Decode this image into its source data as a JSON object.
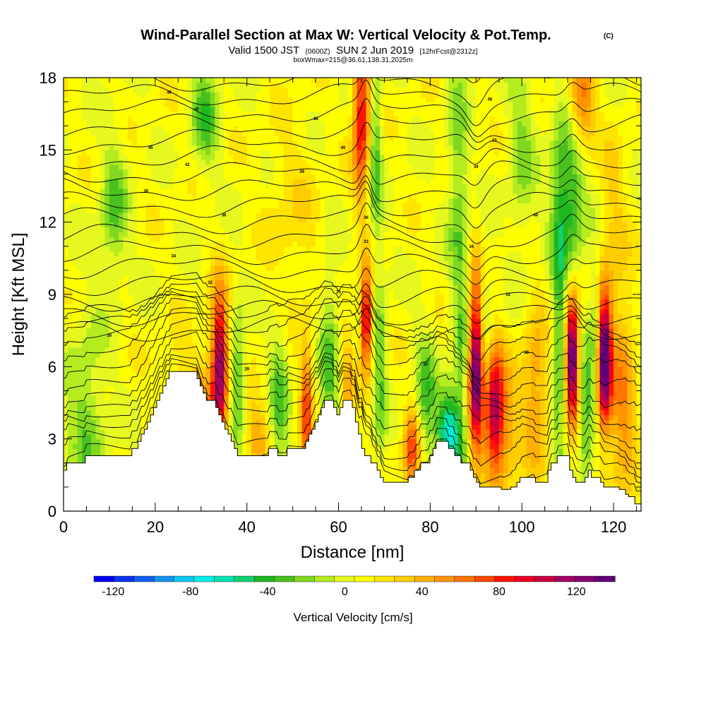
{
  "title": {
    "main": "Wind-Parallel Section at Max W: Vertical Velocity & Pot.Temp.",
    "main_suffix": "(C)",
    "valid_prefix": "Valid 1500 JST",
    "valid_z": "(0600Z)",
    "valid_date": "SUN 2 Jun 2019",
    "fcst": "[12hrFcst@2312z]",
    "box": "boxWmax=215@36.61,138.31,2025m"
  },
  "chart_data": {
    "type": "heatmap",
    "xlabel": "Distance [nm]",
    "ylabel": "Height [Kft MSL]",
    "xlim": [
      0,
      126
    ],
    "ylim": [
      0,
      18
    ],
    "x_ticks": [
      0,
      20,
      40,
      60,
      80,
      100,
      120
    ],
    "y_ticks": [
      0,
      3,
      6,
      9,
      12,
      15,
      18
    ],
    "colorbar": {
      "title": "Vertical Velocity [cm/s]",
      "tick_values": [
        -120,
        -80,
        -40,
        0,
        40,
        80,
        120
      ],
      "min": -130,
      "max": 140,
      "colors": [
        "#0000ee",
        "#0a33ee",
        "#1160ee",
        "#1a90f0",
        "#0fc8f0",
        "#00eee6",
        "#00e2b0",
        "#10d070",
        "#20b820",
        "#48c020",
        "#80d820",
        "#b4ec20",
        "#e6f820",
        "#ffff00",
        "#ffe400",
        "#ffcc00",
        "#ffb000",
        "#ff9400",
        "#ff7400",
        "#ff4800",
        "#ff1400",
        "#ea0020",
        "#c80040",
        "#a00060",
        "#800070",
        "#600078"
      ]
    },
    "terrain_heights": [
      1.7,
      2.0,
      2.0,
      2.0,
      2.0,
      2.0,
      2.0,
      2.3,
      2.3,
      2.3,
      2.3,
      2.3,
      2.3,
      2.3,
      2.3,
      2.3,
      2.3,
      2.3,
      2.3,
      2.3,
      2.3,
      2.3,
      2.6,
      2.6,
      2.9,
      3.2,
      3.4,
      3.7,
      4.0,
      4.3,
      4.6,
      4.9,
      5.2,
      5.5,
      5.8,
      5.8,
      5.8,
      5.8,
      5.8,
      5.8,
      5.8,
      5.8,
      5.8,
      5.5,
      5.2,
      4.9,
      4.6,
      4.6,
      4.6,
      4.3,
      4.0,
      3.7,
      3.4,
      3.2,
      2.9,
      2.6,
      2.3,
      2.3,
      2.3,
      2.3,
      2.3,
      2.3,
      2.3,
      2.3,
      2.3,
      2.3,
      2.6,
      2.6,
      2.6,
      2.3,
      2.3,
      2.3,
      2.6,
      2.6,
      2.6,
      2.6,
      2.6,
      2.6,
      2.9,
      3.2,
      3.4,
      3.7,
      4.0,
      4.3,
      4.6,
      4.6,
      4.6,
      4.3,
      4.0,
      4.3,
      4.6,
      4.6,
      4.6,
      4.3,
      3.7,
      3.2,
      2.6,
      2.3,
      2.3,
      2.0,
      2.0,
      1.7,
      1.4,
      1.2,
      1.2,
      1.2,
      1.2,
      1.2,
      1.2,
      1.2,
      1.2,
      1.4,
      1.4,
      1.7,
      1.7,
      2.0,
      2.0,
      2.0,
      2.3,
      2.6,
      2.9,
      2.9,
      2.9,
      2.9,
      2.6,
      2.6,
      2.3,
      2.3,
      2.0,
      2.0,
      2.0,
      1.7,
      1.4,
      1.2,
      1.0,
      1.0,
      1.0,
      1.0,
      1.0,
      1.0,
      1.0,
      0.9,
      0.9,
      0.9,
      1.0,
      1.0,
      1.2,
      1.4,
      1.4,
      1.4,
      1.4,
      1.4,
      1.2,
      1.2,
      1.2,
      1.2,
      1.7,
      2.0,
      2.0,
      2.3,
      2.3,
      2.3,
      2.3,
      1.7,
      1.4,
      1.2,
      1.2,
      1.2,
      1.4,
      1.7,
      1.4,
      1.4,
      1.4,
      1.2,
      1.0,
      1.0,
      1.0,
      1.0,
      1.0,
      0.9,
      0.9,
      0.7,
      0.6,
      0.6,
      0.3,
      0.3
    ],
    "velocity_features": [
      {
        "x": 34,
        "y": 6.0,
        "w": 120,
        "sx": 1.3,
        "sy": 2.2
      },
      {
        "x": 30,
        "y": 4.0,
        "w": 35,
        "sx": 1.8,
        "sy": 1.5
      },
      {
        "x": 25,
        "y": 3.5,
        "w": 30,
        "sx": 3.0,
        "sy": 2.0
      },
      {
        "x": 42,
        "y": 3.0,
        "w": 35,
        "sx": 2.0,
        "sy": 1.2
      },
      {
        "x": 38,
        "y": 5.5,
        "w": -40,
        "sx": 1.2,
        "sy": 2.0
      },
      {
        "x": 47,
        "y": 4.5,
        "w": -35,
        "sx": 1.5,
        "sy": 2.5
      },
      {
        "x": 53,
        "y": 4.0,
        "w": 70,
        "sx": 0.9,
        "sy": 2.0
      },
      {
        "x": 58,
        "y": 6.0,
        "w": -35,
        "sx": 1.5,
        "sy": 3.0
      },
      {
        "x": 62,
        "y": 5.0,
        "w": 30,
        "sx": 1.0,
        "sy": 2.0
      },
      {
        "x": 66,
        "y": 8.0,
        "w": 100,
        "sx": 0.9,
        "sy": 1.5
      },
      {
        "x": 65,
        "y": 16.5,
        "w": 85,
        "sx": 1.3,
        "sy": 2.5
      },
      {
        "x": 68,
        "y": 15.0,
        "w": -40,
        "sx": 1.0,
        "sy": 2.5
      },
      {
        "x": 69,
        "y": 6.0,
        "w": -35,
        "sx": 1.0,
        "sy": 3.0
      },
      {
        "x": 76,
        "y": 2.5,
        "w": 70,
        "sx": 1.3,
        "sy": 1.2
      },
      {
        "x": 79,
        "y": 4.5,
        "w": -40,
        "sx": 1.5,
        "sy": 2.0
      },
      {
        "x": 84,
        "y": 3.3,
        "w": -75,
        "sx": 1.8,
        "sy": 1.2
      },
      {
        "x": 87,
        "y": 6.0,
        "w": -30,
        "sx": 1.2,
        "sy": 3.5
      },
      {
        "x": 90,
        "y": 6.0,
        "w": 130,
        "sx": 1.2,
        "sy": 2.5
      },
      {
        "x": 94,
        "y": 4.2,
        "w": 105,
        "sx": 1.5,
        "sy": 1.8
      },
      {
        "x": 92,
        "y": 7.5,
        "w": -30,
        "sx": 1.0,
        "sy": 2.0
      },
      {
        "x": 97,
        "y": 3.5,
        "w": 30,
        "sx": 2.0,
        "sy": 2.0
      },
      {
        "x": 103,
        "y": 5.0,
        "w": 40,
        "sx": 2.0,
        "sy": 2.5
      },
      {
        "x": 108,
        "y": 6.5,
        "w": -40,
        "sx": 1.0,
        "sy": 4.0
      },
      {
        "x": 110,
        "y": 13.0,
        "w": -55,
        "sx": 2.5,
        "sy": 2.5
      },
      {
        "x": 111,
        "y": 6.5,
        "w": 140,
        "sx": 1.0,
        "sy": 1.8
      },
      {
        "x": 114,
        "y": 4.0,
        "w": -40,
        "sx": 1.0,
        "sy": 2.0
      },
      {
        "x": 118,
        "y": 6.3,
        "w": 140,
        "sx": 1.1,
        "sy": 2.0
      },
      {
        "x": 116,
        "y": 7.5,
        "w": -30,
        "sx": 1.0,
        "sy": 2.0
      },
      {
        "x": 122,
        "y": 4.5,
        "w": 45,
        "sx": 2.0,
        "sy": 3.0
      },
      {
        "x": 113,
        "y": 17.0,
        "w": 55,
        "sx": 2.0,
        "sy": 1.5
      },
      {
        "x": 31,
        "y": 16.5,
        "w": -40,
        "sx": 2.0,
        "sy": 1.5
      },
      {
        "x": 11,
        "y": 12.5,
        "w": -35,
        "sx": 2.0,
        "sy": 2.0
      },
      {
        "x": 5,
        "y": 3.5,
        "w": -30,
        "sx": 3.0,
        "sy": 3.0
      },
      {
        "x": 50,
        "y": 12.0,
        "w": 15,
        "sx": 4.0,
        "sy": 3.0
      },
      {
        "x": 100,
        "y": 15.0,
        "w": -25,
        "sx": 2.0,
        "sy": 3.0
      },
      {
        "x": 86,
        "y": 14.0,
        "w": -30,
        "sx": 1.5,
        "sy": 4.0
      },
      {
        "x": 120,
        "y": 12.0,
        "w": 20,
        "sx": 2.0,
        "sy": 3.0
      }
    ],
    "contour_count": 30,
    "contour_labels": [
      {
        "x": 23,
        "y": 17.4,
        "text": "48"
      },
      {
        "x": 29,
        "y": 16.7,
        "text": "45"
      },
      {
        "x": 55,
        "y": 16.3,
        "text": "48"
      },
      {
        "x": 19,
        "y": 15.1,
        "text": "45"
      },
      {
        "x": 61,
        "y": 15.1,
        "text": "40"
      },
      {
        "x": 27,
        "y": 14.4,
        "text": "42"
      },
      {
        "x": 52,
        "y": 14.1,
        "text": "39"
      },
      {
        "x": 18,
        "y": 13.3,
        "text": "36"
      },
      {
        "x": 35,
        "y": 12.3,
        "text": "36"
      },
      {
        "x": 66,
        "y": 12.2,
        "text": "36"
      },
      {
        "x": 66,
        "y": 11.2,
        "text": "33"
      },
      {
        "x": 24,
        "y": 10.6,
        "text": "34"
      },
      {
        "x": 32,
        "y": 9.5,
        "text": "32"
      },
      {
        "x": 60,
        "y": 9.1,
        "text": "30"
      },
      {
        "x": 10,
        "y": 7.3,
        "text": "30"
      },
      {
        "x": 40,
        "y": 5.9,
        "text": "29"
      },
      {
        "x": 79,
        "y": 6.1,
        "text": "30"
      },
      {
        "x": 93,
        "y": 17.1,
        "text": "48"
      },
      {
        "x": 94,
        "y": 15.4,
        "text": "43"
      },
      {
        "x": 90,
        "y": 14.3,
        "text": "39"
      },
      {
        "x": 103,
        "y": 12.3,
        "text": "40"
      },
      {
        "x": 89,
        "y": 11.0,
        "text": "34"
      },
      {
        "x": 97,
        "y": 9.0,
        "text": "32"
      },
      {
        "x": 101,
        "y": 6.6,
        "text": "30"
      }
    ]
  }
}
